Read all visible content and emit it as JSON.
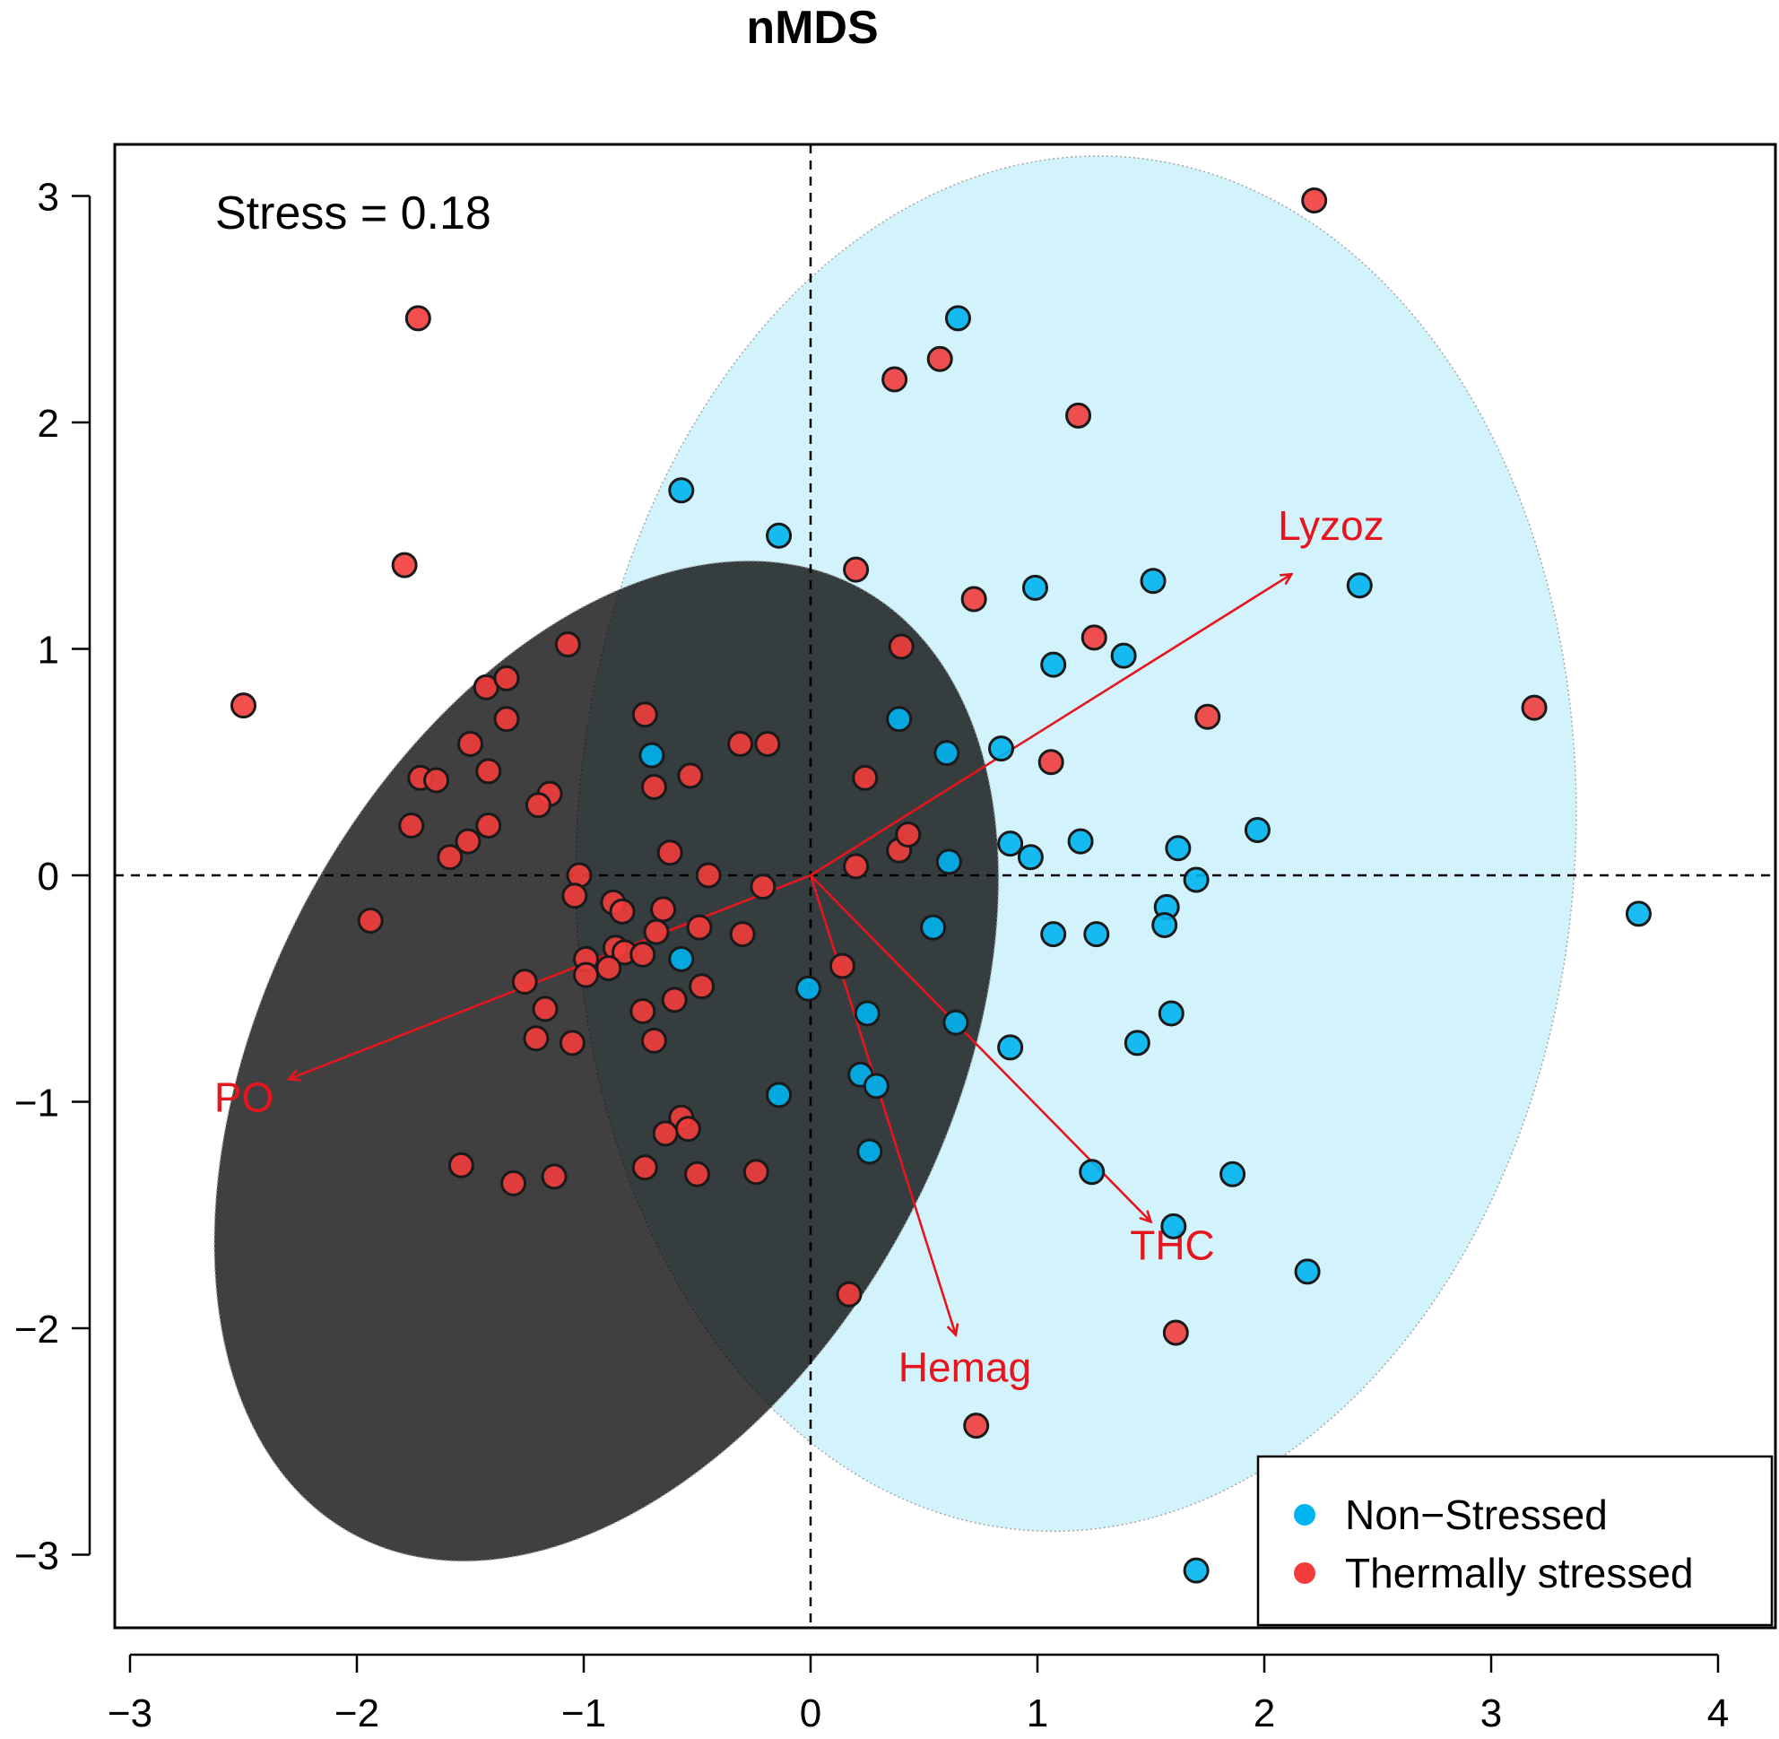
{
  "chart_data": {
    "type": "scatter",
    "title": "nMDS",
    "xlabel": "",
    "ylabel": "",
    "xlim": [
      -3,
      4
    ],
    "ylim": [
      -3,
      3
    ],
    "x_ticks": [
      -3,
      -2,
      -1,
      0,
      1,
      2,
      3,
      4
    ],
    "x_tick_labels": [
      "−3",
      "−2",
      "−1",
      "0",
      "1",
      "2",
      "3",
      "4"
    ],
    "y_ticks": [
      -3,
      -2,
      -1,
      0,
      1,
      2,
      3
    ],
    "y_tick_labels": [
      "−3",
      "−2",
      "−1",
      "0",
      "1",
      "2",
      "3"
    ],
    "annotation": "Stress = 0.18",
    "reference_lines": {
      "x": 0,
      "y": 0,
      "style": "dashed"
    },
    "legend": {
      "placement": "bottom-right",
      "entries": [
        "Non−Stressed",
        "Thermally stressed"
      ]
    },
    "colors": {
      "non_stressed": "#00b4f0",
      "thermally_stressed": "#f23c3c",
      "vectors": "#e8141e",
      "non_stressed_ellipse": "#d0f2fb",
      "stressed_ellipse": "#fbd8d8"
    },
    "ellipses": [
      {
        "series": "non_stressed",
        "center": [
          1.17,
          0.14
        ],
        "semi_axes": [
          2.2,
          3.04
        ],
        "rotation_deg": 4
      },
      {
        "series": "thermally_stressed",
        "center": [
          -0.9,
          -0.82
        ],
        "semi_axes": [
          1.5,
          2.37
        ],
        "rotation_deg": 28
      }
    ],
    "vectors": [
      {
        "label": "Lyzoz",
        "x": 2.12,
        "y": 1.33
      },
      {
        "label": "PO",
        "x": -2.3,
        "y": -0.9
      },
      {
        "label": "THC",
        "x": 1.5,
        "y": -1.53
      },
      {
        "label": "Hemag",
        "x": 0.64,
        "y": -2.03
      }
    ],
    "series": [
      {
        "name": "Non−Stressed",
        "points": [
          [
            0.65,
            2.46
          ],
          [
            -0.57,
            1.7
          ],
          [
            -0.14,
            1.5
          ],
          [
            0.99,
            1.27
          ],
          [
            1.51,
            1.3
          ],
          [
            2.42,
            1.28
          ],
          [
            1.07,
            0.93
          ],
          [
            1.38,
            0.97
          ],
          [
            0.39,
            0.69
          ],
          [
            -0.7,
            0.53
          ],
          [
            0.6,
            0.54
          ],
          [
            0.84,
            0.56
          ],
          [
            0.88,
            0.14
          ],
          [
            0.97,
            0.08
          ],
          [
            1.19,
            0.15
          ],
          [
            1.62,
            0.12
          ],
          [
            1.97,
            0.2
          ],
          [
            0.61,
            0.06
          ],
          [
            1.7,
            -0.02
          ],
          [
            1.57,
            -0.14
          ],
          [
            1.56,
            -0.22
          ],
          [
            0.54,
            -0.23
          ],
          [
            1.07,
            -0.26
          ],
          [
            1.26,
            -0.26
          ],
          [
            3.65,
            -0.17
          ],
          [
            -0.57,
            -0.37
          ],
          [
            -0.01,
            -0.5
          ],
          [
            0.25,
            -0.61
          ],
          [
            0.64,
            -0.65
          ],
          [
            1.59,
            -0.61
          ],
          [
            0.88,
            -0.76
          ],
          [
            1.44,
            -0.74
          ],
          [
            -0.14,
            -0.97
          ],
          [
            0.22,
            -0.88
          ],
          [
            0.29,
            -0.93
          ],
          [
            0.26,
            -1.22
          ],
          [
            1.24,
            -1.31
          ],
          [
            1.86,
            -1.32
          ],
          [
            1.6,
            -1.55
          ],
          [
            2.19,
            -1.75
          ],
          [
            1.7,
            -3.07
          ]
        ]
      },
      {
        "name": "Thermally stressed",
        "points": [
          [
            -1.73,
            2.46
          ],
          [
            2.22,
            2.98
          ],
          [
            0.37,
            2.19
          ],
          [
            0.57,
            2.28
          ],
          [
            1.18,
            2.03
          ],
          [
            -1.79,
            1.37
          ],
          [
            0.2,
            1.35
          ],
          [
            0.72,
            1.22
          ],
          [
            -1.07,
            1.02
          ],
          [
            0.4,
            1.01
          ],
          [
            1.25,
            1.05
          ],
          [
            -2.5,
            0.75
          ],
          [
            -1.43,
            0.83
          ],
          [
            -1.34,
            0.87
          ],
          [
            -1.34,
            0.69
          ],
          [
            -0.73,
            0.71
          ],
          [
            1.75,
            0.7
          ],
          [
            3.19,
            0.74
          ],
          [
            -1.5,
            0.58
          ],
          [
            -0.31,
            0.58
          ],
          [
            -0.19,
            0.58
          ],
          [
            1.06,
            0.5
          ],
          [
            -1.72,
            0.43
          ],
          [
            -1.65,
            0.42
          ],
          [
            -1.42,
            0.46
          ],
          [
            -0.69,
            0.39
          ],
          [
            -0.53,
            0.44
          ],
          [
            0.24,
            0.43
          ],
          [
            -1.15,
            0.36
          ],
          [
            -1.2,
            0.31
          ],
          [
            -1.76,
            0.22
          ],
          [
            -1.42,
            0.22
          ],
          [
            -1.51,
            0.15
          ],
          [
            -1.59,
            0.08
          ],
          [
            -0.62,
            0.1
          ],
          [
            0.39,
            0.11
          ],
          [
            0.43,
            0.18
          ],
          [
            0.2,
            0.04
          ],
          [
            -1.02,
            0.0
          ],
          [
            -0.45,
            0.0
          ],
          [
            -0.21,
            -0.05
          ],
          [
            -1.94,
            -0.2
          ],
          [
            -1.04,
            -0.09
          ],
          [
            -0.87,
            -0.12
          ],
          [
            -0.83,
            -0.16
          ],
          [
            -0.65,
            -0.15
          ],
          [
            -0.68,
            -0.25
          ],
          [
            -0.49,
            -0.23
          ],
          [
            -0.3,
            -0.26
          ],
          [
            -0.99,
            -0.37
          ],
          [
            -0.86,
            -0.32
          ],
          [
            -0.82,
            -0.34
          ],
          [
            -0.74,
            -0.35
          ],
          [
            -0.89,
            -0.41
          ],
          [
            -0.99,
            -0.44
          ],
          [
            -1.26,
            -0.47
          ],
          [
            -0.6,
            -0.55
          ],
          [
            -0.48,
            -0.49
          ],
          [
            -0.74,
            -0.6
          ],
          [
            0.14,
            -0.4
          ],
          [
            -1.17,
            -0.59
          ],
          [
            -1.21,
            -0.72
          ],
          [
            -1.05,
            -0.74
          ],
          [
            -0.69,
            -0.73
          ],
          [
            -0.57,
            -1.07
          ],
          [
            -0.54,
            -1.12
          ],
          [
            -0.64,
            -1.14
          ],
          [
            -1.54,
            -1.28
          ],
          [
            -1.31,
            -1.36
          ],
          [
            -1.13,
            -1.33
          ],
          [
            -0.73,
            -1.29
          ],
          [
            -0.5,
            -1.32
          ],
          [
            -0.24,
            -1.31
          ],
          [
            0.17,
            -1.85
          ],
          [
            1.61,
            -2.02
          ],
          [
            0.73,
            -2.43
          ]
        ]
      }
    ]
  }
}
